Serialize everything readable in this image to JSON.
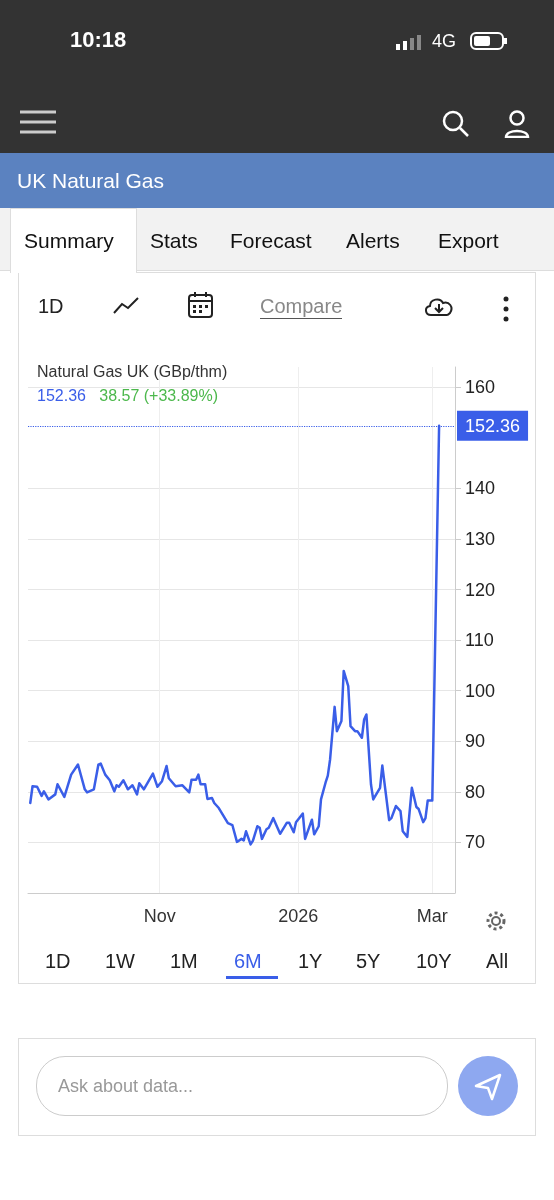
{
  "chart_data": {
    "type": "line",
    "title": "Natural Gas UK (GBp/thm)",
    "subtitle": "152.36",
    "annotations": [
      "38.57 (+33.89%)",
      "10:18",
      "4G",
      "UK Natural Gas",
      "Summary",
      "Stats",
      "Forecast",
      "Alerts",
      "Export",
      "1D",
      "Compare",
      "1D",
      "1W",
      "1M",
      "6M",
      "1Y",
      "5Y",
      "10Y",
      "All",
      "Ask about data..."
    ],
    "x": [
      "2025-09-05",
      "2025-09-06",
      "2025-09-08",
      "2025-09-10",
      "2025-09-11",
      "2025-09-13",
      "2025-09-16",
      "2025-09-17",
      "2025-09-20",
      "2025-09-23",
      "2025-09-26",
      "2025-09-29",
      "2025-09-30",
      "2025-10-03",
      "2025-10-05",
      "2025-10-06",
      "2025-10-08",
      "2025-10-10",
      "2025-10-12",
      "2025-10-13",
      "2025-10-14",
      "2025-10-16",
      "2025-10-18",
      "2025-10-20",
      "2025-10-22",
      "2025-10-23",
      "2025-10-25",
      "2025-10-29",
      "2025-10-31",
      "2025-11-02",
      "2025-11-04",
      "2025-11-05",
      "2025-11-08",
      "2025-11-11",
      "2025-11-14",
      "2025-11-15",
      "2025-11-17",
      "2025-11-18",
      "2025-11-19",
      "2025-11-21",
      "2025-11-22",
      "2025-11-24",
      "2025-11-25",
      "2025-11-27",
      "2025-12-01",
      "2025-12-03",
      "2025-12-05",
      "2025-12-07",
      "2025-12-08",
      "2025-12-09",
      "2025-12-11",
      "2025-12-12",
      "2025-12-14",
      "2025-12-15",
      "2025-12-16",
      "2025-12-18",
      "2025-12-19",
      "2025-12-21",
      "2025-12-24",
      "2025-12-27",
      "2025-12-28",
      "2025-12-30",
      "2025-12-31",
      "2026-01-03",
      "2026-01-04",
      "2026-01-07",
      "2026-01-08",
      "2026-01-10",
      "2026-01-11",
      "2026-01-13",
      "2026-01-14",
      "2026-01-15",
      "2026-01-17",
      "2026-01-18",
      "2026-01-20",
      "2026-01-21",
      "2026-01-23",
      "2026-01-24",
      "2026-01-26",
      "2026-01-27",
      "2026-01-29",
      "2026-01-30",
      "2026-01-31",
      "2026-02-02",
      "2026-02-03",
      "2026-02-06",
      "2026-02-07",
      "2026-02-10",
      "2026-02-11",
      "2026-02-13",
      "2026-02-15",
      "2026-02-16",
      "2026-02-18",
      "2026-02-20",
      "2026-02-22",
      "2026-02-23",
      "2026-02-25",
      "2026-02-26",
      "2026-02-27",
      "2026-03-01",
      "2026-03-04"
    ],
    "series": [
      {
        "color": "#3a5ee8",
        "values": [
          77.8,
          81.1,
          81.0,
          79.2,
          80.1,
          78.5,
          79.5,
          81.5,
          79.0,
          83.4,
          85.4,
          80.5,
          79.9,
          80.5,
          85.4,
          85.6,
          83.4,
          82.3,
          80.1,
          81.3,
          81.0,
          82.3,
          80.5,
          81.3,
          79.5,
          81.7,
          80.5,
          83.6,
          81.0,
          82.1,
          85.1,
          82.7,
          81.1,
          81.3,
          79.9,
          82.4,
          82.4,
          83.4,
          81.5,
          81.5,
          78.6,
          78.8,
          77.8,
          76.8,
          73.8,
          73.4,
          70.1,
          70.7,
          70.4,
          72.2,
          69.6,
          70.3,
          73.2,
          72.9,
          70.7,
          72.6,
          72.9,
          74.8,
          71.7,
          73.9,
          73.9,
          72.0,
          74.0,
          75.7,
          70.7,
          74.5,
          71.6,
          73.2,
          78.5,
          81.8,
          83.2,
          86.4,
          96.8,
          92.0,
          94.0,
          103.9,
          100.9,
          93.0,
          92.0,
          92.0,
          90.7,
          94.3,
          95.3,
          81.5,
          78.5,
          80.8,
          85.2,
          74.4,
          74.8,
          77.2,
          76.2,
          72.2,
          71.1,
          80.8,
          77.0,
          76.6,
          74.0,
          74.8,
          78.3,
          78.3,
          152.36
        ]
      }
    ],
    "xlim": [
      "2025-09-04",
      "2026-03-11"
    ],
    "xticks": [
      {
        "value": "2025-11-01",
        "label": "Nov"
      },
      {
        "value": "2026-01-01",
        "label": "2026"
      },
      {
        "value": "2026-03-01",
        "label": "Mar"
      }
    ],
    "ylim": [
      60,
      164
    ],
    "yticks": [
      70,
      80,
      90,
      100,
      110,
      120,
      130,
      140,
      160
    ],
    "ref_lines": [
      {
        "axis": "y",
        "value": 152.36,
        "label": "152.36",
        "color": "#3a5ee8",
        "line_style": "dotted"
      }
    ],
    "grid": true,
    "marker": "none",
    "line_style": "solid"
  }
}
